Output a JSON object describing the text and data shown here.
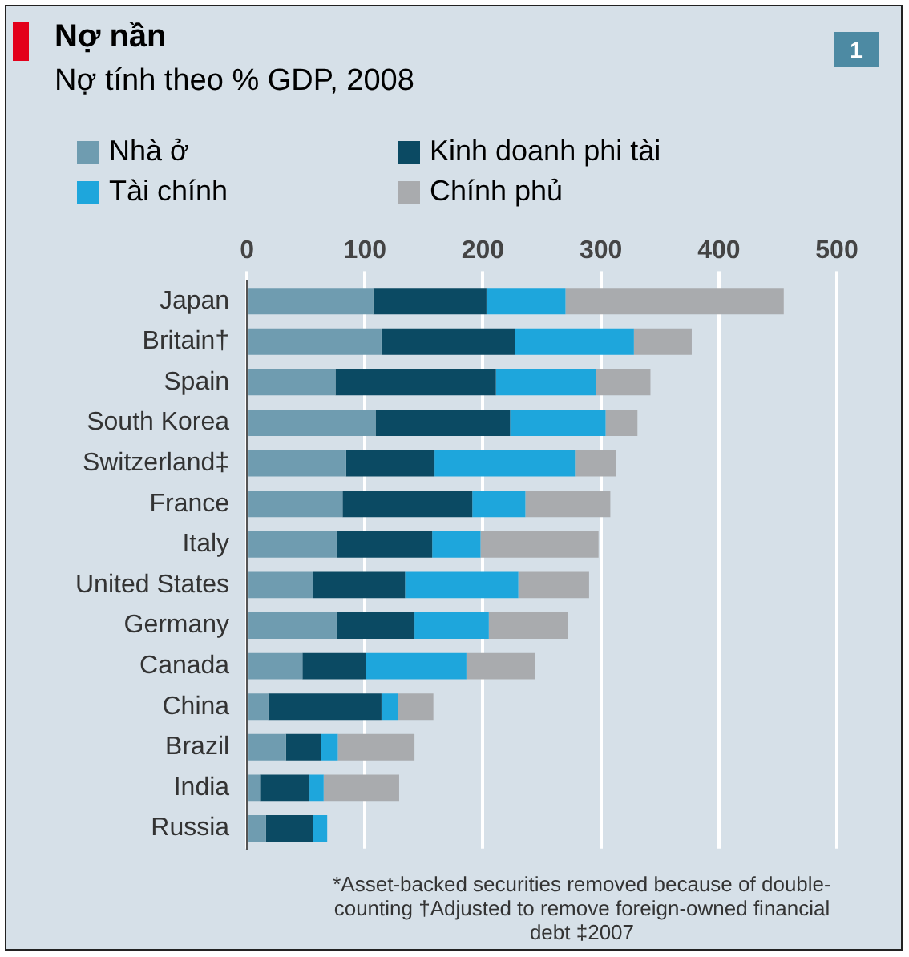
{
  "chart_data": {
    "type": "bar",
    "orientation": "horizontal",
    "stacked": true,
    "title": "Nợ nần",
    "subtitle": "Nợ tính theo % GDP, 2008",
    "categories": [
      "Japan",
      "Britain†",
      "Spain",
      "South Korea",
      "Switzerland‡",
      "France",
      "Italy",
      "United States",
      "Germany",
      "Canada",
      "China",
      "Brazil",
      "India",
      "Russia"
    ],
    "series": [
      {
        "name": "Nhà ở",
        "color": "#6f9cb0",
        "values": [
          107,
          114,
          75,
          109,
          84,
          81,
          76,
          56,
          76,
          47,
          18,
          33,
          11,
          16
        ]
      },
      {
        "name": "Kinh doanh phi tài",
        "color": "#0b4a63",
        "values": [
          96,
          113,
          136,
          114,
          75,
          110,
          81,
          78,
          66,
          54,
          96,
          30,
          42,
          40
        ]
      },
      {
        "name": "Tài chính",
        "color": "#1ea6dc",
        "values": [
          67,
          101,
          85,
          81,
          119,
          45,
          41,
          96,
          63,
          85,
          14,
          14,
          12,
          12
        ]
      },
      {
        "name": "Chính phủ",
        "color": "#a9abae",
        "values": [
          185,
          49,
          46,
          27,
          35,
          72,
          100,
          60,
          67,
          58,
          30,
          65,
          64,
          0
        ]
      }
    ],
    "xlim": [
      0,
      500
    ],
    "xticks": [
      0,
      100,
      200,
      300,
      400,
      500
    ],
    "grid": "x",
    "legend": "top",
    "annotations": [
      "1",
      "*Asset-backed securities removed because of double-counting   †Adjusted to remove foreign-owned financial debt   ‡2007"
    ]
  }
}
